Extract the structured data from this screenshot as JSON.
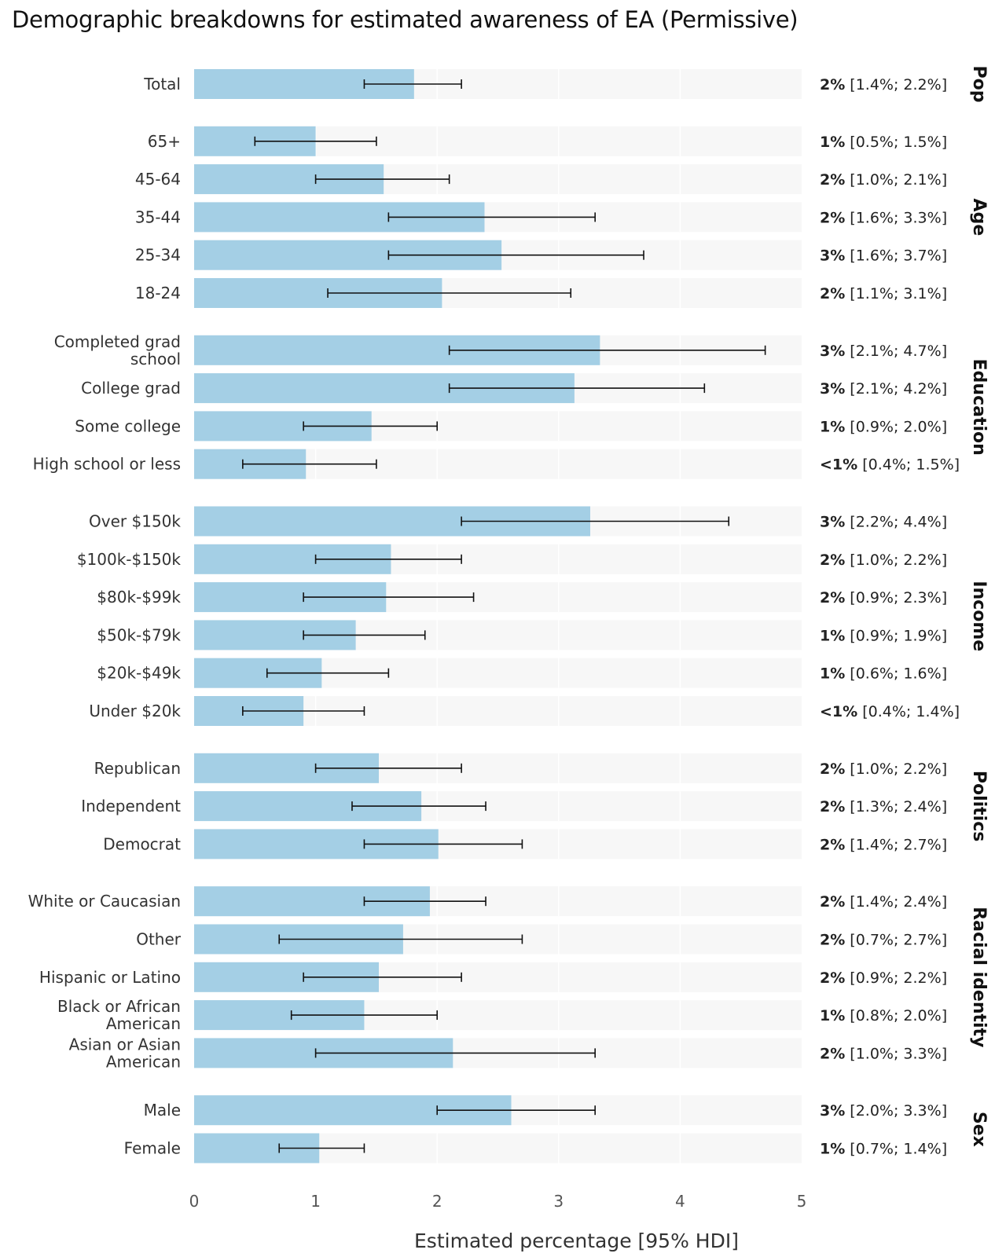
{
  "chart_data": {
    "type": "bar",
    "orientation": "horizontal",
    "title": "Demographic breakdowns for estimated awareness of EA (Permissive)",
    "xlabel": "Estimated percentage [95% HDI]",
    "ylabel": "",
    "xlim": [
      0,
      5
    ],
    "xticks": [
      "0",
      "1",
      "2",
      "3",
      "4",
      "5"
    ],
    "grid": true,
    "colors": {
      "bar": "#a4cfe5",
      "panel": "#f7f7f7",
      "grid": "#ffffff",
      "errorbar": "#111111"
    },
    "groups": [
      {
        "name": "Pop",
        "rows": [
          {
            "label": "Total",
            "value": 1.81,
            "lo": 1.4,
            "hi": 2.2,
            "pct": "2%",
            "interval": "[1.4%; 2.2%]"
          }
        ]
      },
      {
        "name": "Age",
        "rows": [
          {
            "label": "65+",
            "value": 1.0,
            "lo": 0.5,
            "hi": 1.5,
            "pct": "1%",
            "interval": "[0.5%; 1.5%]"
          },
          {
            "label": "45-64",
            "value": 1.56,
            "lo": 1.0,
            "hi": 2.1,
            "pct": "2%",
            "interval": "[1.0%; 2.1%]"
          },
          {
            "label": "35-44",
            "value": 2.39,
            "lo": 1.6,
            "hi": 3.3,
            "pct": "2%",
            "interval": "[1.6%; 3.3%]"
          },
          {
            "label": "25-34",
            "value": 2.53,
            "lo": 1.6,
            "hi": 3.7,
            "pct": "3%",
            "interval": "[1.6%; 3.7%]"
          },
          {
            "label": "18-24",
            "value": 2.04,
            "lo": 1.1,
            "hi": 3.1,
            "pct": "2%",
            "interval": "[1.1%; 3.1%]"
          }
        ]
      },
      {
        "name": "Education",
        "rows": [
          {
            "label": "Completed grad school",
            "label_lines": [
              "Completed grad",
              "school"
            ],
            "value": 3.34,
            "lo": 2.1,
            "hi": 4.7,
            "pct": "3%",
            "interval": "[2.1%; 4.7%]"
          },
          {
            "label": "College grad",
            "value": 3.13,
            "lo": 2.1,
            "hi": 4.2,
            "pct": "3%",
            "interval": "[2.1%; 4.2%]"
          },
          {
            "label": "Some college",
            "value": 1.46,
            "lo": 0.9,
            "hi": 2.0,
            "pct": "1%",
            "interval": "[0.9%; 2.0%]"
          },
          {
            "label": "High school or less",
            "value": 0.92,
            "lo": 0.4,
            "hi": 1.5,
            "pct": "<1%",
            "interval": "[0.4%; 1.5%]"
          }
        ]
      },
      {
        "name": "Income",
        "rows": [
          {
            "label": "Over $150k",
            "value": 3.26,
            "lo": 2.2,
            "hi": 4.4,
            "pct": "3%",
            "interval": "[2.2%; 4.4%]"
          },
          {
            "label": "$100k-$150k",
            "value": 1.62,
            "lo": 1.0,
            "hi": 2.2,
            "pct": "2%",
            "interval": "[1.0%; 2.2%]"
          },
          {
            "label": "$80k-$99k",
            "value": 1.58,
            "lo": 0.9,
            "hi": 2.3,
            "pct": "2%",
            "interval": "[0.9%; 2.3%]"
          },
          {
            "label": "$50k-$79k",
            "value": 1.33,
            "lo": 0.9,
            "hi": 1.9,
            "pct": "1%",
            "interval": "[0.9%; 1.9%]"
          },
          {
            "label": "$20k-$49k",
            "value": 1.05,
            "lo": 0.6,
            "hi": 1.6,
            "pct": "1%",
            "interval": "[0.6%; 1.6%]"
          },
          {
            "label": "Under $20k",
            "value": 0.9,
            "lo": 0.4,
            "hi": 1.4,
            "pct": "<1%",
            "interval": "[0.4%; 1.4%]"
          }
        ]
      },
      {
        "name": "Politics",
        "rows": [
          {
            "label": "Republican",
            "value": 1.52,
            "lo": 1.0,
            "hi": 2.2,
            "pct": "2%",
            "interval": "[1.0%; 2.2%]"
          },
          {
            "label": "Independent",
            "value": 1.87,
            "lo": 1.3,
            "hi": 2.4,
            "pct": "2%",
            "interval": "[1.3%; 2.4%]"
          },
          {
            "label": "Democrat",
            "value": 2.01,
            "lo": 1.4,
            "hi": 2.7,
            "pct": "2%",
            "interval": "[1.4%; 2.7%]"
          }
        ]
      },
      {
        "name": "Racial identity",
        "rows": [
          {
            "label": "White or Caucasian",
            "value": 1.94,
            "lo": 1.4,
            "hi": 2.4,
            "pct": "2%",
            "interval": "[1.4%; 2.4%]"
          },
          {
            "label": "Other",
            "value": 1.72,
            "lo": 0.7,
            "hi": 2.7,
            "pct": "2%",
            "interval": "[0.7%; 2.7%]"
          },
          {
            "label": "Hispanic or Latino",
            "value": 1.52,
            "lo": 0.9,
            "hi": 2.2,
            "pct": "2%",
            "interval": "[0.9%; 2.2%]"
          },
          {
            "label": "Black or African American",
            "label_lines": [
              "Black or African",
              "American"
            ],
            "value": 1.4,
            "lo": 0.8,
            "hi": 2.0,
            "pct": "1%",
            "interval": "[0.8%; 2.0%]"
          },
          {
            "label": "Asian or Asian American",
            "label_lines": [
              "Asian or Asian",
              "American"
            ],
            "value": 2.13,
            "lo": 1.0,
            "hi": 3.3,
            "pct": "2%",
            "interval": "[1.0%; 3.3%]"
          }
        ]
      },
      {
        "name": "Sex",
        "rows": [
          {
            "label": "Male",
            "value": 2.61,
            "lo": 2.0,
            "hi": 3.3,
            "pct": "3%",
            "interval": "[2.0%; 3.3%]"
          },
          {
            "label": "Female",
            "value": 1.03,
            "lo": 0.7,
            "hi": 1.4,
            "pct": "1%",
            "interval": "[0.7%; 1.4%]"
          }
        ]
      }
    ]
  }
}
